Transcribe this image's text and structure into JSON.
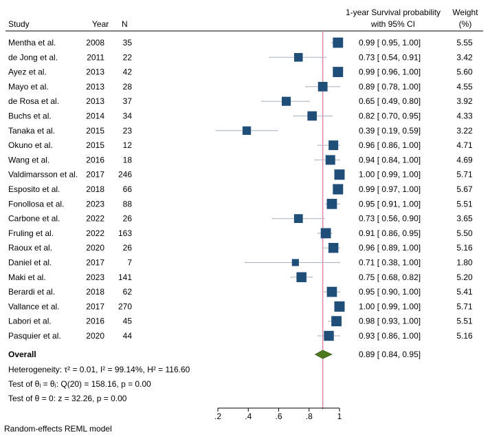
{
  "chart_data": {
    "type": "forest",
    "columns": {
      "study": "Study",
      "year": "Year",
      "n": "N",
      "estimate_line1": "1-year Survival probability",
      "estimate_line2": "with 95% CI",
      "weight_line1": "Weight",
      "weight_line2": "(%)"
    },
    "studies": [
      {
        "study": "Mentha et al.",
        "year": "2008",
        "n": "35",
        "est": 0.99,
        "lo": 0.95,
        "hi": 1.0,
        "ci": "0.99 [ 0.95, 1.00]",
        "weight": "5.55"
      },
      {
        "study": "de Jong et al.",
        "year": "2011",
        "n": "22",
        "est": 0.73,
        "lo": 0.54,
        "hi": 0.91,
        "ci": "0.73 [ 0.54, 0.91]",
        "weight": "3.42"
      },
      {
        "study": "Ayez et al.",
        "year": "2013",
        "n": "42",
        "est": 0.99,
        "lo": 0.96,
        "hi": 1.0,
        "ci": "0.99 [ 0.96, 1.00]",
        "weight": "5.60"
      },
      {
        "study": "Mayo et al.",
        "year": "2013",
        "n": "28",
        "est": 0.89,
        "lo": 0.78,
        "hi": 1.0,
        "ci": "0.89 [ 0.78, 1.00]",
        "weight": "4.55"
      },
      {
        "study": "de Rosa et al.",
        "year": "2013",
        "n": "37",
        "est": 0.65,
        "lo": 0.49,
        "hi": 0.8,
        "ci": "0.65 [ 0.49, 0.80]",
        "weight": "3.92"
      },
      {
        "study": "Buchs et al.",
        "year": "2014",
        "n": "34",
        "est": 0.82,
        "lo": 0.7,
        "hi": 0.95,
        "ci": "0.82 [ 0.70, 0.95]",
        "weight": "4.33"
      },
      {
        "study": "Tanaka et al.",
        "year": "2015",
        "n": "23",
        "est": 0.39,
        "lo": 0.19,
        "hi": 0.59,
        "ci": "0.39 [ 0.19, 0.59]",
        "weight": "3.22"
      },
      {
        "study": "Okuno et al.",
        "year": "2015",
        "n": "12",
        "est": 0.96,
        "lo": 0.86,
        "hi": 1.0,
        "ci": "0.96 [ 0.86, 1.00]",
        "weight": "4.71"
      },
      {
        "study": "Wang et al.",
        "year": "2016",
        "n": "18",
        "est": 0.94,
        "lo": 0.84,
        "hi": 1.0,
        "ci": "0.94 [ 0.84, 1.00]",
        "weight": "4.69"
      },
      {
        "study": "Valdimarsson et al.",
        "year": "2017",
        "n": "246",
        "est": 1.0,
        "lo": 0.99,
        "hi": 1.0,
        "ci": "1.00 [ 0.99, 1.00]",
        "weight": "5.71"
      },
      {
        "study": "Esposito et al.",
        "year": "2018",
        "n": "66",
        "est": 0.99,
        "lo": 0.97,
        "hi": 1.0,
        "ci": "0.99 [ 0.97, 1.00]",
        "weight": "5.67"
      },
      {
        "study": "Fonollosa et al.",
        "year": "2023",
        "n": "88",
        "est": 0.95,
        "lo": 0.91,
        "hi": 1.0,
        "ci": "0.95 [ 0.91, 1.00]",
        "weight": "5.51"
      },
      {
        "study": "Carbone et al.",
        "year": "2022",
        "n": "26",
        "est": 0.73,
        "lo": 0.56,
        "hi": 0.9,
        "ci": "0.73 [ 0.56, 0.90]",
        "weight": "3.65"
      },
      {
        "study": "Fruling et al.",
        "year": "2022",
        "n": "163",
        "est": 0.91,
        "lo": 0.86,
        "hi": 0.95,
        "ci": "0.91 [ 0.86, 0.95]",
        "weight": "5.50"
      },
      {
        "study": "Raoux et al.",
        "year": "2020",
        "n": "26",
        "est": 0.96,
        "lo": 0.89,
        "hi": 1.0,
        "ci": "0.96 [ 0.89, 1.00]",
        "weight": "5.16"
      },
      {
        "study": "Daniel et al.",
        "year": "2017",
        "n": "7",
        "est": 0.71,
        "lo": 0.38,
        "hi": 1.0,
        "ci": "0.71 [ 0.38, 1.00]",
        "weight": "1.80"
      },
      {
        "study": "Maki et al.",
        "year": "2023",
        "n": "141",
        "est": 0.75,
        "lo": 0.68,
        "hi": 0.82,
        "ci": "0.75 [ 0.68, 0.82]",
        "weight": "5.20"
      },
      {
        "study": "Berardi et al.",
        "year": "2018",
        "n": "62",
        "est": 0.95,
        "lo": 0.9,
        "hi": 1.0,
        "ci": "0.95 [ 0.90, 1.00]",
        "weight": "5.41"
      },
      {
        "study": "Vallance et al.",
        "year": "2017",
        "n": "270",
        "est": 1.0,
        "lo": 0.99,
        "hi": 1.0,
        "ci": "1.00 [ 0.99, 1.00]",
        "weight": "5.71"
      },
      {
        "study": "Labori et al.",
        "year": "2016",
        "n": "45",
        "est": 0.98,
        "lo": 0.93,
        "hi": 1.0,
        "ci": "0.98 [ 0.93, 1.00]",
        "weight": "5.51"
      },
      {
        "study": "Pasquier et al.",
        "year": "2020",
        "n": "44",
        "est": 0.93,
        "lo": 0.86,
        "hi": 1.0,
        "ci": "0.93 [ 0.86, 1.00]",
        "weight": "5.16"
      }
    ],
    "overall": {
      "label": "Overall",
      "est": 0.89,
      "lo": 0.84,
      "hi": 0.95,
      "ci": "0.89 [ 0.84, 0.95]"
    },
    "stats": [
      "Heterogeneity: τ² = 0.01, I² = 99.14%, H² = 116.60",
      "Test of θᵢ = θⱼ: Q(20) = 158.16, p = 0.00",
      "Test of θ = 0: z = 32.26, p = 0.00"
    ],
    "model_note": "Random-effects REML model",
    "x_ticks": [
      0.2,
      0.4,
      0.6,
      0.8,
      1.0
    ],
    "x_tick_labels": [
      ".2",
      ".4",
      ".6",
      ".8",
      "1"
    ],
    "xlim": [
      0.2,
      1.0
    ],
    "reference_line": 0.89,
    "colors": {
      "marker": "#1f4e79",
      "ci_line": "#a7b2c2",
      "diamond": "#4d7a1f",
      "diamond_stroke": "#3a5c17",
      "reference": "#e07a9b",
      "axis": "#000000"
    }
  }
}
